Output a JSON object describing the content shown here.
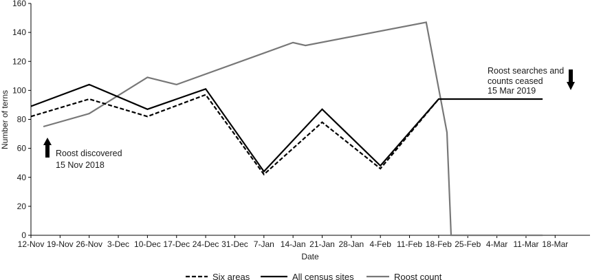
{
  "chart_data": {
    "type": "line",
    "xlabel": "Date",
    "ylabel": "Number of terns",
    "ylim": [
      0,
      160
    ],
    "yticks": [
      0,
      20,
      40,
      60,
      80,
      100,
      120,
      140,
      160
    ],
    "x_tick_labels": [
      "12-Nov",
      "19-Nov",
      "26-Nov",
      "3-Dec",
      "10-Dec",
      "17-Dec",
      "24-Dec",
      "31-Dec",
      "7-Jan",
      "14-Jan",
      "21-Jan",
      "28-Jan",
      "4-Feb",
      "11-Feb",
      "18-Feb",
      "25-Feb",
      "4-Mar",
      "11-Mar",
      "18-Mar"
    ],
    "x_axis_note": "x values are days after 12-Nov-2018",
    "grid": false,
    "legend_position": "bottom",
    "series": [
      {
        "name": "Six areas",
        "color": "#000000",
        "dash": "dashed",
        "x": [
          0,
          14,
          28,
          42,
          56,
          70,
          84,
          98
        ],
        "y": [
          82,
          94,
          82,
          97,
          42,
          78,
          46,
          94
        ]
      },
      {
        "name": "All census sites",
        "color": "#000000",
        "dash": "solid",
        "x": [
          0,
          14,
          28,
          42,
          56,
          70,
          84,
          98,
          123
        ],
        "y": [
          89,
          104,
          87,
          101,
          44,
          87,
          48,
          94,
          94
        ]
      },
      {
        "name": "Roost count",
        "color": "#777777",
        "dash": "solid",
        "x": [
          3,
          14,
          28,
          35,
          63,
          66,
          95,
          100,
          101,
          123
        ],
        "y": [
          75,
          84,
          109,
          104,
          133,
          131,
          147,
          71,
          0,
          0
        ]
      }
    ],
    "annotations": [
      {
        "lines": [
          "Roost discovered",
          "15 Nov 2018"
        ],
        "arrow": "up"
      },
      {
        "lines": [
          "Roost searches and",
          "counts ceased",
          "15 Mar 2019"
        ],
        "arrow": "down"
      }
    ]
  }
}
